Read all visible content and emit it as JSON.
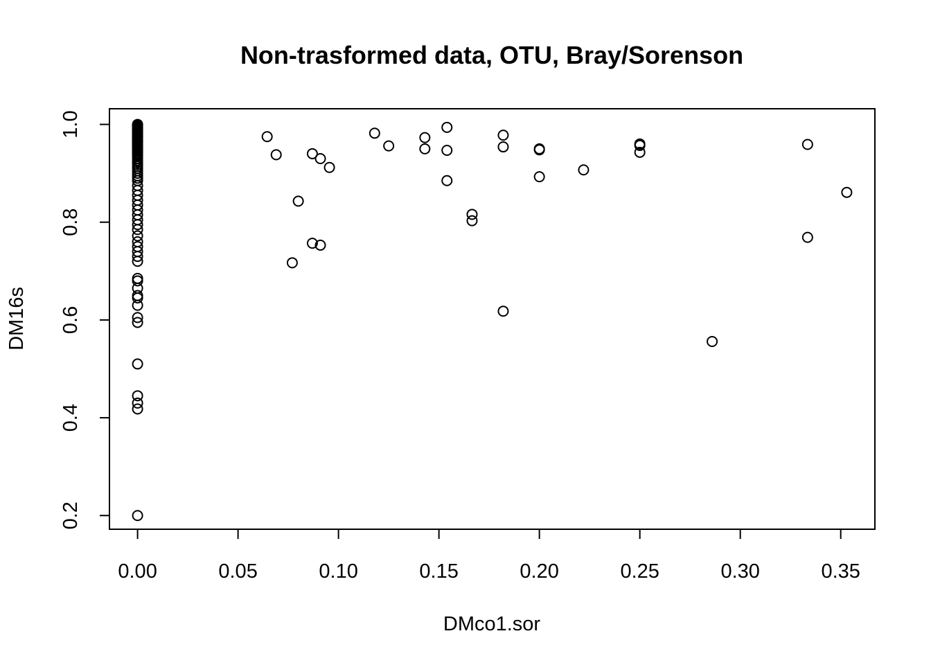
{
  "chart_data": {
    "type": "scatter",
    "title": "Non-trasformed data, OTU, Bray/Sorenson",
    "xlabel": "DMco1.sor",
    "ylabel": "DM16s",
    "xlim": [
      -0.014,
      0.367
    ],
    "ylim": [
      0.172,
      1.032
    ],
    "x_ticks": [
      "0.00",
      "0.05",
      "0.10",
      "0.15",
      "0.20",
      "0.25",
      "0.30",
      "0.35"
    ],
    "y_ticks": [
      "0.2",
      "0.4",
      "0.6",
      "0.8",
      "1.0"
    ],
    "x_tick_values": [
      0,
      0.05,
      0.1,
      0.15,
      0.2,
      0.25,
      0.3,
      0.35
    ],
    "y_tick_values": [
      0.2,
      0.4,
      0.6,
      0.8,
      1.0
    ],
    "grid": false,
    "legend": "none",
    "series": [
      {
        "x": [
          0,
          0,
          0,
          0,
          0,
          0,
          0,
          0,
          0,
          0,
          0,
          0,
          0,
          0,
          0,
          0,
          0,
          0,
          0,
          0,
          0,
          0,
          0,
          0,
          0,
          0,
          0,
          0,
          0,
          0,
          0,
          0,
          0,
          0,
          0,
          0,
          0,
          0,
          0,
          0,
          0,
          0,
          0,
          0,
          0,
          0,
          0,
          0,
          0,
          0,
          0,
          0,
          0,
          0,
          0,
          0,
          0,
          0,
          0,
          0,
          0,
          0,
          0,
          0,
          0,
          0,
          0,
          0,
          0,
          0,
          0,
          0,
          0,
          0.0645,
          0.069,
          0.087,
          0.091,
          0.0955,
          0.08,
          0.077,
          0.087,
          0.091,
          0.118,
          0.125,
          0.143,
          0.143,
          0.154,
          0.154,
          0.154,
          0.1665,
          0.1665,
          0.182,
          0.182,
          0.182,
          0.2,
          0.2,
          0.2,
          0.222,
          0.25,
          0.25,
          0.25,
          0.286,
          0.3335,
          0.3335,
          0.353
        ],
        "y": [
          1.0,
          0.998,
          0.996,
          0.994,
          0.992,
          0.99,
          0.988,
          0.986,
          0.984,
          0.982,
          0.98,
          0.978,
          0.976,
          0.974,
          0.972,
          0.97,
          0.968,
          0.966,
          0.964,
          0.962,
          0.96,
          0.958,
          0.956,
          0.954,
          0.952,
          0.95,
          0.948,
          0.945,
          0.942,
          0.94,
          0.937,
          0.934,
          0.93,
          0.926,
          0.922,
          0.918,
          0.914,
          0.91,
          0.905,
          0.9,
          0.895,
          0.89,
          0.885,
          0.875,
          0.865,
          0.855,
          0.845,
          0.835,
          0.825,
          0.815,
          0.805,
          0.795,
          0.785,
          0.772,
          0.76,
          0.75,
          0.74,
          0.73,
          0.72,
          0.685,
          0.68,
          0.665,
          0.65,
          0.645,
          0.63,
          0.605,
          0.595,
          0.51,
          0.445,
          0.43,
          0.418,
          0.2,
          0.965,
          0.975,
          0.938,
          0.94,
          0.93,
          0.912,
          0.843,
          0.717,
          0.757,
          0.753,
          0.982,
          0.956,
          0.973,
          0.95,
          0.994,
          0.947,
          0.885,
          0.816,
          0.803,
          0.978,
          0.954,
          0.618,
          0.95,
          0.948,
          0.893,
          0.907,
          0.96,
          0.957,
          0.943,
          0.556,
          0.959,
          0.769,
          0.861
        ]
      }
    ]
  }
}
